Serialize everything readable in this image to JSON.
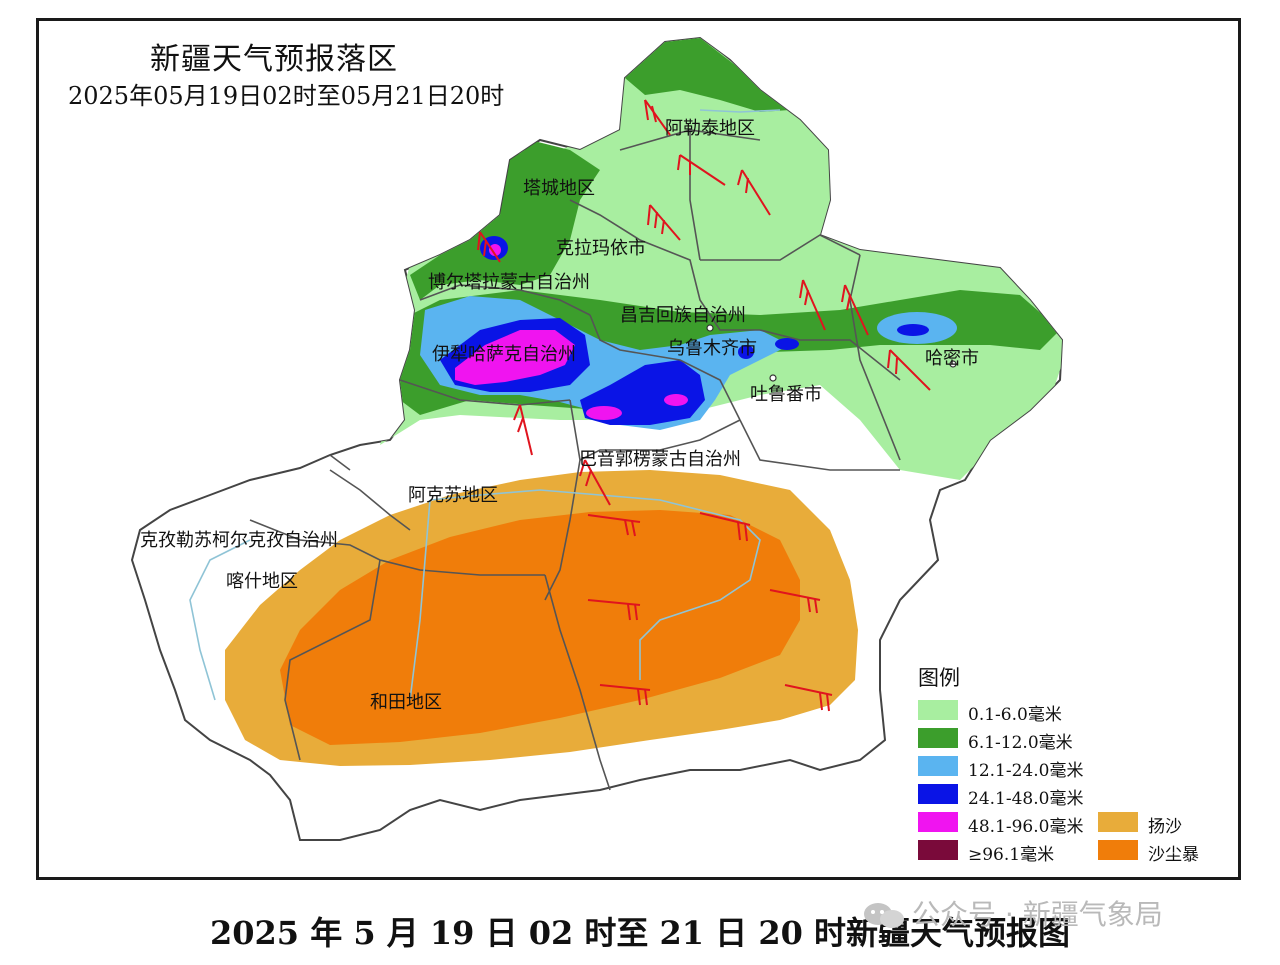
{
  "map": {
    "title": "新疆天气预报落区",
    "subtitle": "2025年05月19日02时至05月21日20时",
    "regions": [
      {
        "id": "altay",
        "label": "阿勒泰地区"
      },
      {
        "id": "tacheng",
        "label": "塔城地区"
      },
      {
        "id": "karamay",
        "label": "克拉玛依市"
      },
      {
        "id": "bortala",
        "label": "博尔塔拉蒙古自治州"
      },
      {
        "id": "changji",
        "label": "昌吉回族自治州"
      },
      {
        "id": "ili",
        "label": "伊犁哈萨克自治州"
      },
      {
        "id": "urumqi",
        "label": "乌鲁木齐市"
      },
      {
        "id": "hami",
        "label": "哈密市"
      },
      {
        "id": "turpan",
        "label": "吐鲁番市"
      },
      {
        "id": "bayingol",
        "label": "巴音郭楞蒙古自治州"
      },
      {
        "id": "aksu",
        "label": "阿克苏地区"
      },
      {
        "id": "kizilsu",
        "label": "克孜勒苏柯尔克孜自治州"
      },
      {
        "id": "kashgar",
        "label": "喀什地区"
      },
      {
        "id": "hotan",
        "label": "和田地区"
      }
    ]
  },
  "legend": {
    "title": "图例",
    "items": [
      {
        "label": "0.1-6.0毫米",
        "color": "#a8eea0"
      },
      {
        "label": "6.1-12.0毫米",
        "color": "#3c9e2c"
      },
      {
        "label": "12.1-24.0毫米",
        "color": "#5ab4f0"
      },
      {
        "label": "24.1-48.0毫米",
        "color": "#0a14e6"
      },
      {
        "label": "48.1-96.0毫米",
        "color": "#f014f0"
      },
      {
        "label": "≥96.1毫米",
        "color": "#7a0a3a"
      },
      {
        "label": "扬沙",
        "color": "#e8ac3a"
      },
      {
        "label": "沙尘暴",
        "color": "#f07d0a"
      }
    ]
  },
  "caption": "2025 年 5 月 19 日 02 时至 21 日 20 时新疆天气预报图",
  "watermark": "公众号 · 新疆气象局"
}
